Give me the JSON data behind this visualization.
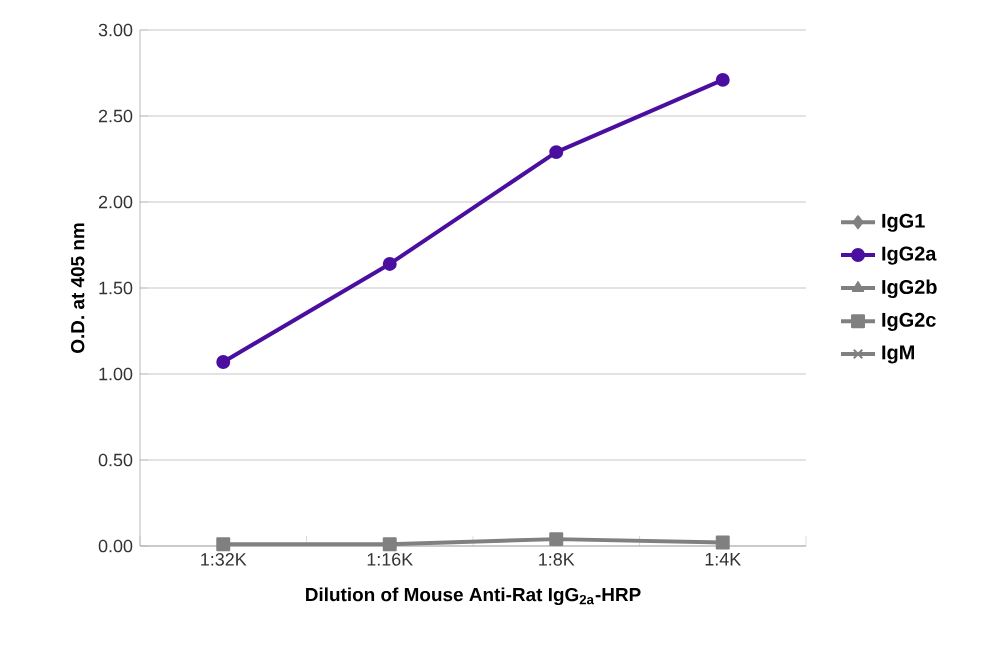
{
  "chart_data": {
    "type": "line",
    "xlabel": "Dilution of Mouse Anti-Rat IgG$_{2a}$-HRP",
    "ylabel": "O.D. at 405 nm",
    "categories": [
      "1:32K",
      "1:16K",
      "1:8K",
      "1:4K"
    ],
    "ylim": [
      0,
      3
    ],
    "yticks": [
      {
        "value": 0,
        "label": "0.00"
      },
      {
        "value": 0.5,
        "label": "0.50"
      },
      {
        "value": 1,
        "label": "1.00"
      },
      {
        "value": 1.5,
        "label": "1.50"
      },
      {
        "value": 2,
        "label": "2.00"
      },
      {
        "value": 2.5,
        "label": "2.50"
      },
      {
        "value": 3,
        "label": "3.00"
      }
    ],
    "grid": "y",
    "legend": "right",
    "series": [
      {
        "name": "IgG1",
        "color": "#808080",
        "marker": "diamond",
        "values": [
          null,
          null,
          null,
          null
        ]
      },
      {
        "name": "IgG2a",
        "color": "#4b0fa0",
        "marker": "circle",
        "values": [
          1.07,
          1.64,
          2.29,
          2.71
        ]
      },
      {
        "name": "IgG2b",
        "color": "#808080",
        "marker": "triangle",
        "values": [
          null,
          null,
          null,
          null
        ]
      },
      {
        "name": "IgG2c",
        "color": "#808080",
        "marker": "square",
        "values": [
          0.01,
          0.01,
          0.04,
          0.02
        ]
      },
      {
        "name": "IgM",
        "color": "#808080",
        "marker": "cross",
        "values": [
          null,
          null,
          null,
          null
        ]
      }
    ]
  }
}
